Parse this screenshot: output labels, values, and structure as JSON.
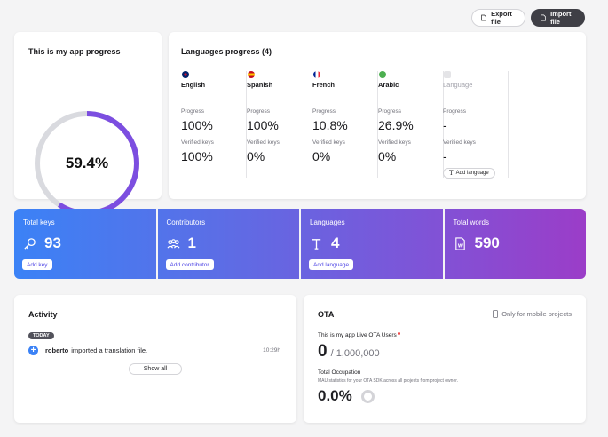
{
  "toolbar": {
    "export_label": "Export file",
    "import_label": "Import file"
  },
  "progress_card": {
    "title": "This is my app progress",
    "percent_label": "59.4%",
    "percent": 59.4,
    "colors": {
      "progress": "#7c4ee0",
      "track": "#d9dadf"
    }
  },
  "languages_card": {
    "title": "Languages progress (4)",
    "progress_label": "Progress",
    "verified_label": "Verified keys",
    "languages": [
      {
        "name": "English",
        "progress": "100%",
        "verified": "100%",
        "flag": "uk-flag-icon"
      },
      {
        "name": "Spanish",
        "progress": "100%",
        "verified": "0%",
        "flag": "spain-flag-icon"
      },
      {
        "name": "French",
        "progress": "10.8%",
        "verified": "0%",
        "flag": "france-flag-icon"
      },
      {
        "name": "Arabic",
        "progress": "26.9%",
        "verified": "0%",
        "flag": "arabic-flag-icon"
      }
    ],
    "placeholder": {
      "name": "Language",
      "progress": "-",
      "verified": "-",
      "button": "Add language"
    }
  },
  "stats": {
    "total_keys": {
      "label": "Total keys",
      "value": "93",
      "button": "Add key",
      "icon": "key-icon"
    },
    "contributors": {
      "label": "Contributors",
      "value": "1",
      "button": "Add contributor",
      "icon": "people-icon"
    },
    "languages": {
      "label": "Languages",
      "value": "4",
      "button": "Add language",
      "icon": "text-icon"
    },
    "total_words": {
      "label": "Total words",
      "value": "590",
      "icon": "word-file-icon"
    }
  },
  "activity": {
    "title": "Activity",
    "badge": "TODAY",
    "items": [
      {
        "user": "roberto",
        "text": "imported a translation file.",
        "time": "10:29h"
      }
    ],
    "show_all": "Show all"
  },
  "ota": {
    "title": "OTA",
    "mobile_note": "Only for mobile projects",
    "users_label": "This is my app Live OTA Users",
    "users_value": "0",
    "users_max": "/ 1,000,000",
    "occupation_label": "Total Occupation",
    "occupation_desc": "MAU statistics for your OTA SDK across all projects from project owner.",
    "occupation_value": "0.0%"
  }
}
